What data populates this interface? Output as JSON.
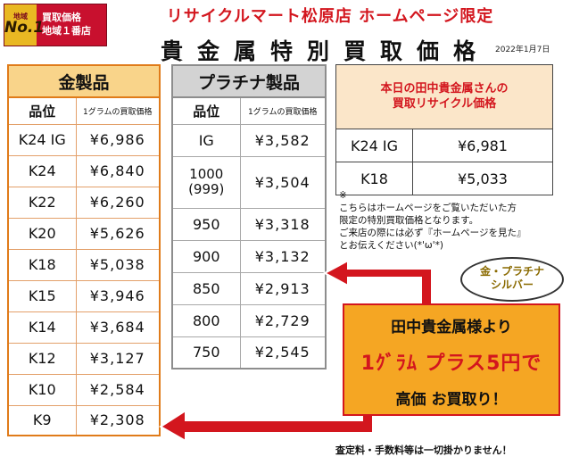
{
  "badge": {
    "no1_prefix": "地域",
    "no1_big": "No.1",
    "line1": "買取価格",
    "line2": "地域１番店"
  },
  "header": {
    "shop_title": "リサイクルマート松原店 ホームページ限定",
    "main_title": "貴金属特別買取価格",
    "date": "2022年1月7日"
  },
  "gold_table": {
    "title": "金製品",
    "col_grade": "品位",
    "col_price": "1グラムの買取価格",
    "rows": [
      {
        "grade": "K24 IG",
        "price": "¥6,986"
      },
      {
        "grade": "K24",
        "price": "¥6,840"
      },
      {
        "grade": "K22",
        "price": "¥6,260"
      },
      {
        "grade": "K20",
        "price": "¥5,626"
      },
      {
        "grade": "K18",
        "price": "¥5,038"
      },
      {
        "grade": "K15",
        "price": "¥3,946"
      },
      {
        "grade": "K14",
        "price": "¥3,684"
      },
      {
        "grade": "K12",
        "price": "¥3,127"
      },
      {
        "grade": "K10",
        "price": "¥2,584"
      },
      {
        "grade": "K9",
        "price": "¥2,308"
      }
    ]
  },
  "platinum_table": {
    "title": "プラチナ製品",
    "col_grade": "品位",
    "col_price": "1グラムの買取価格",
    "rows": [
      {
        "grade": "IG",
        "price": "¥3,582"
      },
      {
        "grade": "1000",
        "grade_sub": "(999)",
        "price": "¥3,504"
      },
      {
        "grade": "950",
        "price": "¥3,318"
      },
      {
        "grade": "900",
        "price": "¥3,132"
      },
      {
        "grade": "850",
        "price": "¥2,913"
      },
      {
        "grade": "800",
        "price": "¥2,729"
      },
      {
        "grade": "750",
        "price": "¥2,545"
      }
    ]
  },
  "today_table": {
    "title_line1": "本日の田中貴金属さんの",
    "title_line2": "買取リサイクル価格",
    "rows": [
      {
        "grade": "K24 IG",
        "price": "¥6,981"
      },
      {
        "grade": "K18",
        "price": "¥5,033"
      }
    ]
  },
  "note": {
    "mark": "※",
    "line1": "こちらはホームページをご覧いただいた方",
    "line2": "限定の特別買取価格となります。",
    "line3": "ご来店の際には必ず『ホームページを見た』",
    "line4": "とお伝えください(*'ω'*)"
  },
  "bubble": {
    "line1": "金・プラチナ",
    "line2": "シルバー"
  },
  "promo": {
    "line1": "田中貴金属様より",
    "line2": "1ｸﾞﾗﾑ プラス5円で",
    "line3": "高価 お買取り！"
  },
  "footer": {
    "text": "査定料・手数料等は一切掛かりません！"
  },
  "colors": {
    "accent_red": "#d3161e",
    "gold_header": "#f9d48a",
    "platinum_header": "#d3d3d3",
    "promo_bg": "#f5a623"
  }
}
